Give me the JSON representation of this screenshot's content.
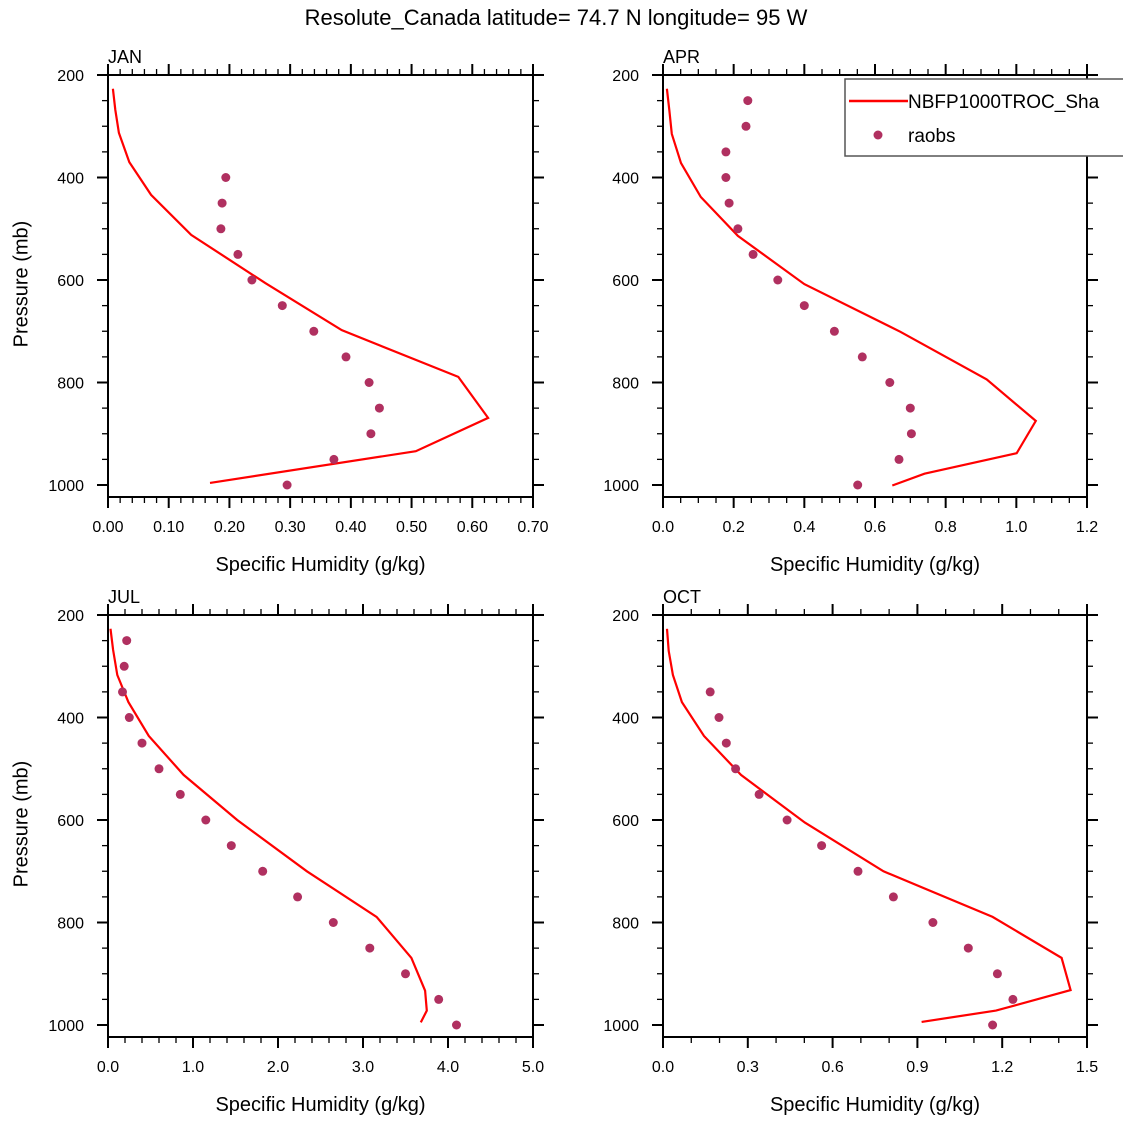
{
  "figure": {
    "title": "Resolute_Canada  latitude= 74.7 N longitude= 95 W"
  },
  "legend": {
    "placement": "top-right of APR panel (clipped)",
    "entries": [
      {
        "label": "NBFP1000TROC_Sha",
        "type": "line",
        "color": "#ff0000"
      },
      {
        "label": "raobs",
        "type": "marker",
        "color": "#b03060"
      }
    ]
  },
  "colors": {
    "model_line": "#ff0000",
    "obs_marker": "#b03060",
    "axes": "#000000",
    "legend_border": "#555555"
  },
  "chart_data": [
    {
      "type": "line",
      "panel": "JAN",
      "title": "JAN",
      "xlabel": "Specific Humidity (g/kg)",
      "ylabel": "Pressure (mb)",
      "xlim": [
        0,
        0.7
      ],
      "ylim": [
        1023,
        200
      ],
      "x_ticks": [
        0,
        0.1,
        0.2,
        0.3,
        0.4,
        0.5,
        0.6,
        0.7
      ],
      "x_tick_labels": [
        "0.00",
        "0.10",
        "0.20",
        "0.30",
        "0.40",
        "0.50",
        "0.60",
        "0.70"
      ],
      "x_minor_step": 0.02,
      "y_ticks": [
        200,
        400,
        600,
        800,
        1000
      ],
      "y_tick_labels": [
        "200",
        "400",
        "600",
        "800",
        "1000"
      ],
      "y_minor_step": 50,
      "show_ylabel": true,
      "grid": false,
      "series": [
        {
          "name": "NBFP1000TROC_Sha",
          "kind": "line",
          "points": [
            [
              0.008,
              227
            ],
            [
              0.012,
              268
            ],
            [
              0.018,
              313
            ],
            [
              0.035,
              370
            ],
            [
              0.071,
              434
            ],
            [
              0.137,
              512
            ],
            [
              0.259,
              606
            ],
            [
              0.385,
              698
            ],
            [
              0.577,
              789
            ],
            [
              0.626,
              869
            ],
            [
              0.507,
              934
            ],
            [
              0.168,
              996
            ]
          ]
        },
        {
          "name": "raobs",
          "kind": "marker",
          "points": [
            [
              0.194,
              400
            ],
            [
              0.188,
              450
            ],
            [
              0.186,
              500
            ],
            [
              0.214,
              550
            ],
            [
              0.237,
              600
            ],
            [
              0.287,
              650
            ],
            [
              0.339,
              700
            ],
            [
              0.392,
              750
            ],
            [
              0.43,
              800
            ],
            [
              0.447,
              850
            ],
            [
              0.433,
              900
            ],
            [
              0.372,
              950
            ],
            [
              0.295,
              1000
            ]
          ]
        }
      ]
    },
    {
      "type": "line",
      "panel": "APR",
      "title": "APR",
      "xlabel": "Specific Humidity (g/kg)",
      "ylabel": "",
      "xlim": [
        0,
        1.2
      ],
      "ylim": [
        1023,
        200
      ],
      "x_ticks": [
        0,
        0.2,
        0.4,
        0.6,
        0.8,
        1.0,
        1.2
      ],
      "x_tick_labels": [
        "0.0",
        "0.2",
        "0.4",
        "0.6",
        "0.8",
        "1.0",
        "1.2"
      ],
      "x_minor_step": 0.05,
      "y_ticks": [
        200,
        400,
        600,
        800,
        1000
      ],
      "y_tick_labels": [
        "200",
        "400",
        "600",
        "800",
        "1000"
      ],
      "y_minor_step": 50,
      "show_ylabel": false,
      "grid": false,
      "series": [
        {
          "name": "NBFP1000TROC_Sha",
          "kind": "line",
          "points": [
            [
              0.011,
              227
            ],
            [
              0.018,
              270
            ],
            [
              0.025,
              315
            ],
            [
              0.051,
              372
            ],
            [
              0.107,
              438
            ],
            [
              0.212,
              514
            ],
            [
              0.4,
              608
            ],
            [
              0.672,
              701
            ],
            [
              0.916,
              794
            ],
            [
              1.055,
              875
            ],
            [
              1.001,
              938
            ],
            [
              0.74,
              978
            ],
            [
              0.649,
              1001
            ]
          ]
        },
        {
          "name": "raobs",
          "kind": "marker",
          "points": [
            [
              0.24,
              250
            ],
            [
              0.235,
              300
            ],
            [
              0.178,
              350
            ],
            [
              0.178,
              400
            ],
            [
              0.187,
              450
            ],
            [
              0.212,
              500
            ],
            [
              0.255,
              550
            ],
            [
              0.325,
              600
            ],
            [
              0.4,
              650
            ],
            [
              0.485,
              700
            ],
            [
              0.564,
              750
            ],
            [
              0.642,
              800
            ],
            [
              0.7,
              850
            ],
            [
              0.703,
              900
            ],
            [
              0.668,
              950
            ],
            [
              0.551,
              1000
            ]
          ]
        }
      ]
    },
    {
      "type": "line",
      "panel": "JUL",
      "title": "JUL",
      "xlabel": "Specific Humidity (g/kg)",
      "ylabel": "Pressure (mb)",
      "xlim": [
        0,
        5.0
      ],
      "ylim": [
        1023,
        200
      ],
      "x_ticks": [
        0,
        1,
        2,
        3,
        4,
        5
      ],
      "x_tick_labels": [
        "0.0",
        "1.0",
        "2.0",
        "3.0",
        "4.0",
        "5.0"
      ],
      "x_minor_step": 0.2,
      "y_ticks": [
        200,
        400,
        600,
        800,
        1000
      ],
      "y_tick_labels": [
        "200",
        "400",
        "600",
        "800",
        "1000"
      ],
      "y_minor_step": 50,
      "show_ylabel": true,
      "grid": false,
      "series": [
        {
          "name": "NBFP1000TROC_Sha",
          "kind": "line",
          "points": [
            [
              0.03,
              227
            ],
            [
              0.06,
              268
            ],
            [
              0.11,
              317
            ],
            [
              0.24,
              370
            ],
            [
              0.48,
              436
            ],
            [
              0.89,
              512
            ],
            [
              1.52,
              600
            ],
            [
              2.34,
              700
            ],
            [
              3.16,
              789
            ],
            [
              3.57,
              869
            ],
            [
              3.73,
              933
            ],
            [
              3.75,
              972
            ],
            [
              3.68,
              995
            ]
          ]
        },
        {
          "name": "raobs",
          "kind": "marker",
          "points": [
            [
              0.22,
              250
            ],
            [
              0.19,
              300
            ],
            [
              0.17,
              350
            ],
            [
              0.25,
              400
            ],
            [
              0.4,
              450
            ],
            [
              0.6,
              500
            ],
            [
              0.85,
              550
            ],
            [
              1.15,
              600
            ],
            [
              1.45,
              650
            ],
            [
              1.82,
              700
            ],
            [
              2.23,
              750
            ],
            [
              2.65,
              800
            ],
            [
              3.08,
              850
            ],
            [
              3.5,
              900
            ],
            [
              3.89,
              950
            ],
            [
              4.1,
              1000
            ]
          ]
        }
      ]
    },
    {
      "type": "line",
      "panel": "OCT",
      "title": "OCT",
      "xlabel": "Specific Humidity (g/kg)",
      "ylabel": "",
      "xlim": [
        0,
        1.5
      ],
      "ylim": [
        1023,
        200
      ],
      "x_ticks": [
        0,
        0.3,
        0.6,
        0.9,
        1.2,
        1.5
      ],
      "x_tick_labels": [
        "0.0",
        "0.3",
        "0.6",
        "0.9",
        "1.2",
        "1.5"
      ],
      "x_minor_step": 0.1,
      "y_ticks": [
        200,
        400,
        600,
        800,
        1000
      ],
      "y_tick_labels": [
        "200",
        "400",
        "600",
        "800",
        "1000"
      ],
      "y_minor_step": 50,
      "show_ylabel": false,
      "grid": false,
      "series": [
        {
          "name": "NBFP1000TROC_Sha",
          "kind": "line",
          "points": [
            [
              0.014,
              227
            ],
            [
              0.02,
              270
            ],
            [
              0.035,
              317
            ],
            [
              0.067,
              370
            ],
            [
              0.145,
              436
            ],
            [
              0.276,
              512
            ],
            [
              0.502,
              605
            ],
            [
              0.78,
              700
            ],
            [
              1.166,
              789
            ],
            [
              1.41,
              869
            ],
            [
              1.442,
              932
            ],
            [
              1.178,
              972
            ],
            [
              0.915,
              994
            ]
          ]
        },
        {
          "name": "raobs",
          "kind": "marker",
          "points": [
            [
              0.167,
              350
            ],
            [
              0.198,
              400
            ],
            [
              0.224,
              450
            ],
            [
              0.257,
              500
            ],
            [
              0.34,
              550
            ],
            [
              0.439,
              600
            ],
            [
              0.561,
              650
            ],
            [
              0.69,
              700
            ],
            [
              0.815,
              750
            ],
            [
              0.955,
              800
            ],
            [
              1.08,
              850
            ],
            [
              1.183,
              900
            ],
            [
              1.238,
              950
            ],
            [
              1.166,
              1000
            ]
          ]
        }
      ]
    }
  ]
}
